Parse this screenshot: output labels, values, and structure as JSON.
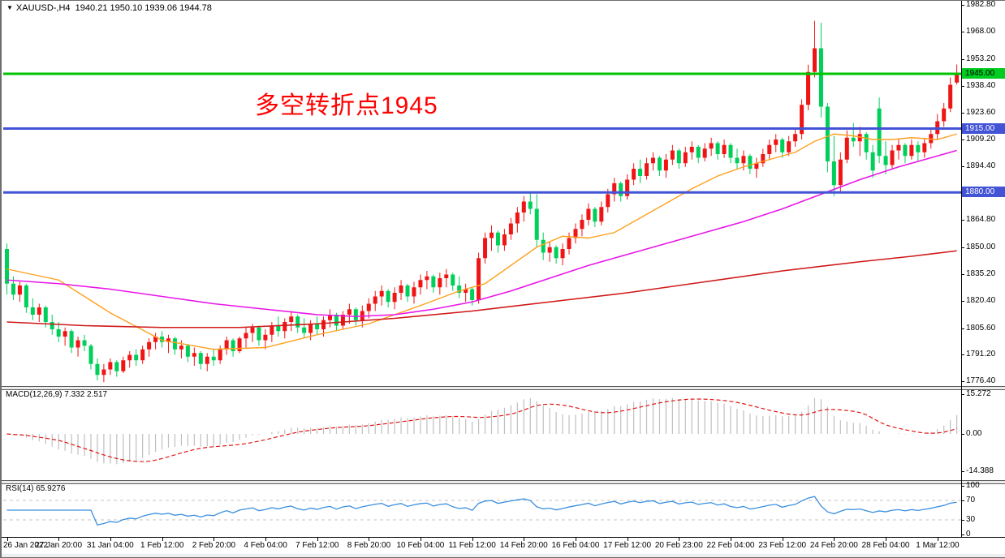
{
  "window": {
    "title_symbol": "XAUUSD-,H4",
    "title_ohlc": "1940.21 1950.10 1939.06 1944.78",
    "collapse_icon": "down-triangle"
  },
  "annotation": {
    "text": "多空转折点1945",
    "color": "#ff0000"
  },
  "colors": {
    "bull_candle": "#f01515",
    "bear_candle": "#00cf5a",
    "ma_fast": "#ffa01e",
    "ma_mid": "#e816e8",
    "ma_slow": "#d01818",
    "level_green": "#00c400",
    "level_blue": "#4353d6",
    "tag_green_bg": "#00cc22",
    "tag_blue_bg": "#4353d6",
    "macd_hist": "#bfbfbf",
    "macd_signal": "#e01414",
    "rsi_line": "#3b8fe0",
    "rsi_level_dash": "#c4c4c4"
  },
  "price_axis": {
    "ticks": [
      1982.8,
      1968.0,
      1953.2,
      1938.4,
      1923.6,
      1909.2,
      1894.4,
      1864.8,
      1850.0,
      1835.2,
      1820.4,
      1805.6,
      1791.2,
      1776.4
    ],
    "tags": [
      {
        "text": "1945.00",
        "price": 1945.0,
        "style": "green"
      },
      {
        "text": "1915.00",
        "price": 1915.0,
        "style": "blue"
      },
      {
        "text": "1880.00",
        "price": 1880.0,
        "style": "blue"
      }
    ]
  },
  "macd_panel": {
    "label": "MACD(12,26,9) 7.332 2.517",
    "axis": [
      {
        "text": "15.272",
        "value": 15.272
      },
      {
        "text": "0.00",
        "value": 0
      },
      {
        "text": "-14.388",
        "value": -14.388
      }
    ]
  },
  "rsi_panel": {
    "label": "RSI(14) 65.9276",
    "axis": [
      {
        "text": "100",
        "value": 100
      },
      {
        "text": "70",
        "value": 70
      },
      {
        "text": "30",
        "value": 30
      },
      {
        "text": "0",
        "value": 0
      }
    ],
    "dashed_levels": [
      70,
      30
    ]
  },
  "time_axis": {
    "labels": [
      "26 Jan 2022",
      "27 Jan 20:00",
      "31 Jan 04:00",
      "1 Feb 12:00",
      "2 Feb 20:00",
      "4 Feb 04:00",
      "7 Feb 12:00",
      "8 Feb 20:00",
      "10 Feb 04:00",
      "11 Feb 12:00",
      "14 Feb 20:00",
      "16 Feb 04:00",
      "17 Feb 12:00",
      "20 Feb 23:00",
      "22 Feb 04:00",
      "23 Feb 12:00",
      "24 Feb 20:00",
      "28 Feb 04:00",
      "1 Mar 12:00"
    ],
    "bars_per_label": 8
  },
  "chart_data": {
    "type": "candlestick",
    "symbol": "XAUUSD-",
    "timeframe": "H4",
    "current_bar": {
      "open": 1940.21,
      "high": 1950.1,
      "low": 1939.06,
      "close": 1944.78
    },
    "price_range_visible": [
      1774.0,
      1985.0
    ],
    "levels": [
      {
        "price": 1945.0,
        "color": "green",
        "note": "bull/bear pivot"
      },
      {
        "price": 1915.0,
        "color": "blue"
      },
      {
        "price": 1880.0,
        "color": "blue"
      }
    ],
    "candles_ohlc": [
      [
        1849,
        1852,
        1824,
        1830
      ],
      [
        1830,
        1834,
        1821,
        1824
      ],
      [
        1824,
        1831,
        1820,
        1829
      ],
      [
        1829,
        1830,
        1814,
        1817
      ],
      [
        1817,
        1822,
        1810,
        1813
      ],
      [
        1813,
        1819,
        1809,
        1817
      ],
      [
        1817,
        1818,
        1806,
        1809
      ],
      [
        1809,
        1813,
        1802,
        1805
      ],
      [
        1805,
        1809,
        1798,
        1801
      ],
      [
        1801,
        1806,
        1796,
        1804
      ],
      [
        1804,
        1805,
        1792,
        1795
      ],
      [
        1795,
        1801,
        1790,
        1799
      ],
      [
        1799,
        1802,
        1793,
        1796
      ],
      [
        1796,
        1797,
        1783,
        1786
      ],
      [
        1786,
        1789,
        1777,
        1780
      ],
      [
        1780,
        1786,
        1776,
        1783
      ],
      [
        1783,
        1789,
        1780,
        1787
      ],
      [
        1787,
        1788,
        1779,
        1782
      ],
      [
        1782,
        1790,
        1781,
        1788
      ],
      [
        1788,
        1793,
        1784,
        1791
      ],
      [
        1791,
        1794,
        1785,
        1788
      ],
      [
        1788,
        1796,
        1786,
        1794
      ],
      [
        1794,
        1800,
        1790,
        1798
      ],
      [
        1798,
        1803,
        1794,
        1801
      ],
      [
        1801,
        1804,
        1795,
        1798
      ],
      [
        1798,
        1802,
        1792,
        1800
      ],
      [
        1800,
        1801,
        1791,
        1794
      ],
      [
        1794,
        1799,
        1789,
        1796
      ],
      [
        1796,
        1797,
        1787,
        1790
      ],
      [
        1790,
        1795,
        1785,
        1792
      ],
      [
        1792,
        1793,
        1783,
        1786
      ],
      [
        1786,
        1792,
        1782,
        1790
      ],
      [
        1790,
        1794,
        1785,
        1788
      ],
      [
        1788,
        1796,
        1786,
        1794
      ],
      [
        1794,
        1801,
        1791,
        1799
      ],
      [
        1799,
        1800,
        1790,
        1793
      ],
      [
        1793,
        1801,
        1792,
        1800
      ],
      [
        1800,
        1806,
        1795,
        1803
      ],
      [
        1803,
        1808,
        1798,
        1806
      ],
      [
        1806,
        1807,
        1796,
        1799
      ],
      [
        1799,
        1805,
        1794,
        1802
      ],
      [
        1802,
        1809,
        1798,
        1807
      ],
      [
        1807,
        1812,
        1801,
        1804
      ],
      [
        1804,
        1811,
        1800,
        1809
      ],
      [
        1809,
        1815,
        1804,
        1812
      ],
      [
        1812,
        1813,
        1803,
        1806
      ],
      [
        1806,
        1811,
        1800,
        1803
      ],
      [
        1803,
        1810,
        1799,
        1808
      ],
      [
        1808,
        1812,
        1802,
        1805
      ],
      [
        1805,
        1812,
        1801,
        1810
      ],
      [
        1810,
        1816,
        1806,
        1813
      ],
      [
        1813,
        1814,
        1804,
        1807
      ],
      [
        1807,
        1815,
        1805,
        1813
      ],
      [
        1813,
        1819,
        1808,
        1816
      ],
      [
        1816,
        1817,
        1807,
        1810
      ],
      [
        1810,
        1818,
        1806,
        1815
      ],
      [
        1815,
        1822,
        1811,
        1819
      ],
      [
        1819,
        1826,
        1815,
        1823
      ],
      [
        1823,
        1829,
        1818,
        1826
      ],
      [
        1826,
        1827,
        1817,
        1820
      ],
      [
        1820,
        1828,
        1816,
        1825
      ],
      [
        1825,
        1832,
        1821,
        1829
      ],
      [
        1829,
        1830,
        1820,
        1823
      ],
      [
        1823,
        1831,
        1819,
        1828
      ],
      [
        1828,
        1835,
        1824,
        1832
      ],
      [
        1832,
        1837,
        1827,
        1834
      ],
      [
        1834,
        1835,
        1825,
        1828
      ],
      [
        1828,
        1836,
        1824,
        1833
      ],
      [
        1833,
        1838,
        1828,
        1835
      ],
      [
        1835,
        1836,
        1826,
        1829
      ],
      [
        1829,
        1834,
        1822,
        1825
      ],
      [
        1825,
        1830,
        1820,
        1827
      ],
      [
        1827,
        1828,
        1818,
        1821
      ],
      [
        1821,
        1847,
        1819,
        1844
      ],
      [
        1844,
        1858,
        1841,
        1855
      ],
      [
        1855,
        1862,
        1848,
        1858
      ],
      [
        1858,
        1859,
        1847,
        1851
      ],
      [
        1851,
        1860,
        1848,
        1857
      ],
      [
        1857,
        1866,
        1854,
        1863
      ],
      [
        1863,
        1872,
        1858,
        1869
      ],
      [
        1869,
        1878,
        1864,
        1875
      ],
      [
        1875,
        1880,
        1868,
        1871
      ],
      [
        1871,
        1879,
        1850,
        1854
      ],
      [
        1854,
        1858,
        1843,
        1847
      ],
      [
        1847,
        1853,
        1842,
        1850
      ],
      [
        1850,
        1851,
        1841,
        1844
      ],
      [
        1844,
        1852,
        1840,
        1849
      ],
      [
        1849,
        1858,
        1846,
        1855
      ],
      [
        1855,
        1863,
        1852,
        1860
      ],
      [
        1860,
        1868,
        1856,
        1865
      ],
      [
        1865,
        1874,
        1862,
        1871
      ],
      [
        1871,
        1872,
        1861,
        1864
      ],
      [
        1864,
        1875,
        1862,
        1872
      ],
      [
        1872,
        1882,
        1869,
        1879
      ],
      [
        1879,
        1888,
        1875,
        1885
      ],
      [
        1885,
        1886,
        1875,
        1878
      ],
      [
        1878,
        1890,
        1876,
        1887
      ],
      [
        1887,
        1896,
        1884,
        1893
      ],
      [
        1893,
        1898,
        1885,
        1889
      ],
      [
        1889,
        1899,
        1887,
        1896
      ],
      [
        1896,
        1902,
        1892,
        1899
      ],
      [
        1899,
        1900,
        1889,
        1892
      ],
      [
        1892,
        1901,
        1888,
        1898
      ],
      [
        1898,
        1906,
        1895,
        1903
      ],
      [
        1903,
        1904,
        1893,
        1896
      ],
      [
        1896,
        1905,
        1894,
        1902
      ],
      [
        1902,
        1908,
        1898,
        1905
      ],
      [
        1905,
        1906,
        1896,
        1899
      ],
      [
        1899,
        1907,
        1897,
        1904
      ],
      [
        1904,
        1910,
        1900,
        1907
      ],
      [
        1907,
        1908,
        1898,
        1901
      ],
      [
        1901,
        1909,
        1899,
        1906
      ],
      [
        1906,
        1907,
        1896,
        1899
      ],
      [
        1899,
        1904,
        1893,
        1896
      ],
      [
        1896,
        1903,
        1892,
        1900
      ],
      [
        1900,
        1901,
        1890,
        1893
      ],
      [
        1893,
        1899,
        1888,
        1896
      ],
      [
        1896,
        1904,
        1894,
        1901
      ],
      [
        1901,
        1909,
        1898,
        1906
      ],
      [
        1906,
        1912,
        1902,
        1909
      ],
      [
        1909,
        1910,
        1899,
        1902
      ],
      [
        1902,
        1911,
        1900,
        1908
      ],
      [
        1908,
        1915,
        1905,
        1912
      ],
      [
        1912,
        1931,
        1909,
        1928
      ],
      [
        1928,
        1950,
        1925,
        1946
      ],
      [
        1946,
        1974,
        1943,
        1959
      ],
      [
        1959,
        1973,
        1921,
        1927
      ],
      [
        1927,
        1929,
        1891,
        1897
      ],
      [
        1897,
        1911,
        1878,
        1884
      ],
      [
        1884,
        1902,
        1880,
        1898
      ],
      [
        1898,
        1914,
        1896,
        1910
      ],
      [
        1910,
        1918,
        1905,
        1908
      ],
      [
        1908,
        1916,
        1900,
        1912
      ],
      [
        1912,
        1913,
        1898,
        1902
      ],
      [
        1902,
        1906,
        1888,
        1892
      ],
      [
        1926,
        1932,
        1896,
        1900
      ],
      [
        1900,
        1908,
        1890,
        1895
      ],
      [
        1895,
        1906,
        1893,
        1903
      ],
      [
        1903,
        1909,
        1898,
        1906
      ],
      [
        1906,
        1907,
        1896,
        1900
      ],
      [
        1900,
        1909,
        1898,
        1906
      ],
      [
        1906,
        1908,
        1897,
        1902
      ],
      [
        1902,
        1910,
        1899,
        1907
      ],
      [
        1907,
        1915,
        1904,
        1912
      ],
      [
        1912,
        1923,
        1909,
        1919
      ],
      [
        1919,
        1929,
        1916,
        1926
      ],
      [
        1926,
        1943,
        1924,
        1939
      ],
      [
        1940.2,
        1950.1,
        1939.1,
        1944.8
      ]
    ],
    "ma_lines": [
      {
        "name": "ma-fast-orange",
        "points": [
          [
            0,
            1838
          ],
          [
            8,
            1832
          ],
          [
            16,
            1814
          ],
          [
            24,
            1799
          ],
          [
            32,
            1794
          ],
          [
            40,
            1795
          ],
          [
            48,
            1802
          ],
          [
            56,
            1808
          ],
          [
            64,
            1818
          ],
          [
            70,
            1826
          ],
          [
            74,
            1830
          ],
          [
            78,
            1840
          ],
          [
            82,
            1850
          ],
          [
            86,
            1856
          ],
          [
            90,
            1855
          ],
          [
            94,
            1858
          ],
          [
            98,
            1866
          ],
          [
            102,
            1874
          ],
          [
            106,
            1882
          ],
          [
            110,
            1889
          ],
          [
            114,
            1894
          ],
          [
            118,
            1898
          ],
          [
            122,
            1902
          ],
          [
            125,
            1908
          ],
          [
            128,
            1912
          ],
          [
            131,
            1911
          ],
          [
            134,
            1909
          ],
          [
            137,
            1909
          ],
          [
            140,
            1910
          ],
          [
            144,
            1909
          ],
          [
            147,
            1912
          ]
        ]
      },
      {
        "name": "ma-mid-magenta",
        "points": [
          [
            0,
            1832
          ],
          [
            8,
            1830
          ],
          [
            16,
            1827
          ],
          [
            24,
            1823
          ],
          [
            32,
            1819
          ],
          [
            40,
            1816
          ],
          [
            48,
            1813
          ],
          [
            54,
            1812
          ],
          [
            60,
            1813
          ],
          [
            66,
            1816
          ],
          [
            72,
            1820
          ],
          [
            78,
            1826
          ],
          [
            84,
            1833
          ],
          [
            90,
            1840
          ],
          [
            96,
            1846
          ],
          [
            102,
            1852
          ],
          [
            108,
            1858
          ],
          [
            114,
            1864
          ],
          [
            120,
            1871
          ],
          [
            126,
            1879
          ],
          [
            132,
            1887
          ],
          [
            138,
            1894
          ],
          [
            143,
            1899
          ],
          [
            147,
            1903
          ]
        ]
      },
      {
        "name": "ma-slow-darkred",
        "points": [
          [
            0,
            1809
          ],
          [
            12,
            1807
          ],
          [
            24,
            1806
          ],
          [
            36,
            1806
          ],
          [
            48,
            1808
          ],
          [
            60,
            1811
          ],
          [
            72,
            1815
          ],
          [
            84,
            1820
          ],
          [
            96,
            1825
          ],
          [
            108,
            1831
          ],
          [
            120,
            1837
          ],
          [
            132,
            1842
          ],
          [
            140,
            1845
          ],
          [
            147,
            1848
          ]
        ]
      }
    ],
    "macd": {
      "params": [
        12,
        26,
        9
      ],
      "current_macd": 7.332,
      "current_signal": 2.517,
      "scale": [
        -14.388,
        15.272
      ]
    },
    "rsi": {
      "period": 14,
      "current": 65.9276,
      "scale": [
        0,
        100
      ],
      "levels": [
        70,
        30
      ]
    }
  }
}
